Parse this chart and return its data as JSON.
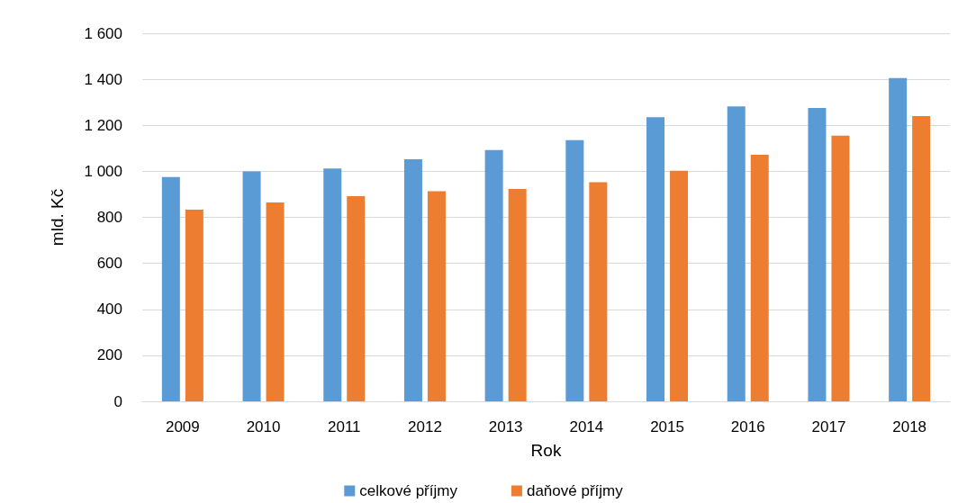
{
  "chart_data": {
    "type": "bar",
    "xlabel": "Rok",
    "ylabel": "mld. Kč",
    "categories": [
      "2009",
      "2010",
      "2011",
      "2012",
      "2013",
      "2014",
      "2015",
      "2016",
      "2017",
      "2018"
    ],
    "series": [
      {
        "name": "celkové příjmy",
        "color": "#5b9bd5",
        "values": [
          975,
          1000,
          1012,
          1052,
          1092,
          1135,
          1235,
          1282,
          1275,
          1405
        ]
      },
      {
        "name": "daňové příjmy",
        "color": "#ed7d31",
        "values": [
          833,
          865,
          892,
          913,
          923,
          953,
          1002,
          1072,
          1155,
          1240
        ]
      }
    ],
    "ylim": [
      0,
      1600
    ],
    "yticks": [
      0,
      200,
      400,
      600,
      800,
      {
        "value": 1000,
        "label": "1 000"
      },
      {
        "value": 1200,
        "label": "1 200"
      },
      {
        "value": 1400,
        "label": "1 400"
      },
      {
        "value": 1600,
        "label": "1 600"
      }
    ],
    "grid": "y",
    "legend": "bottom"
  }
}
